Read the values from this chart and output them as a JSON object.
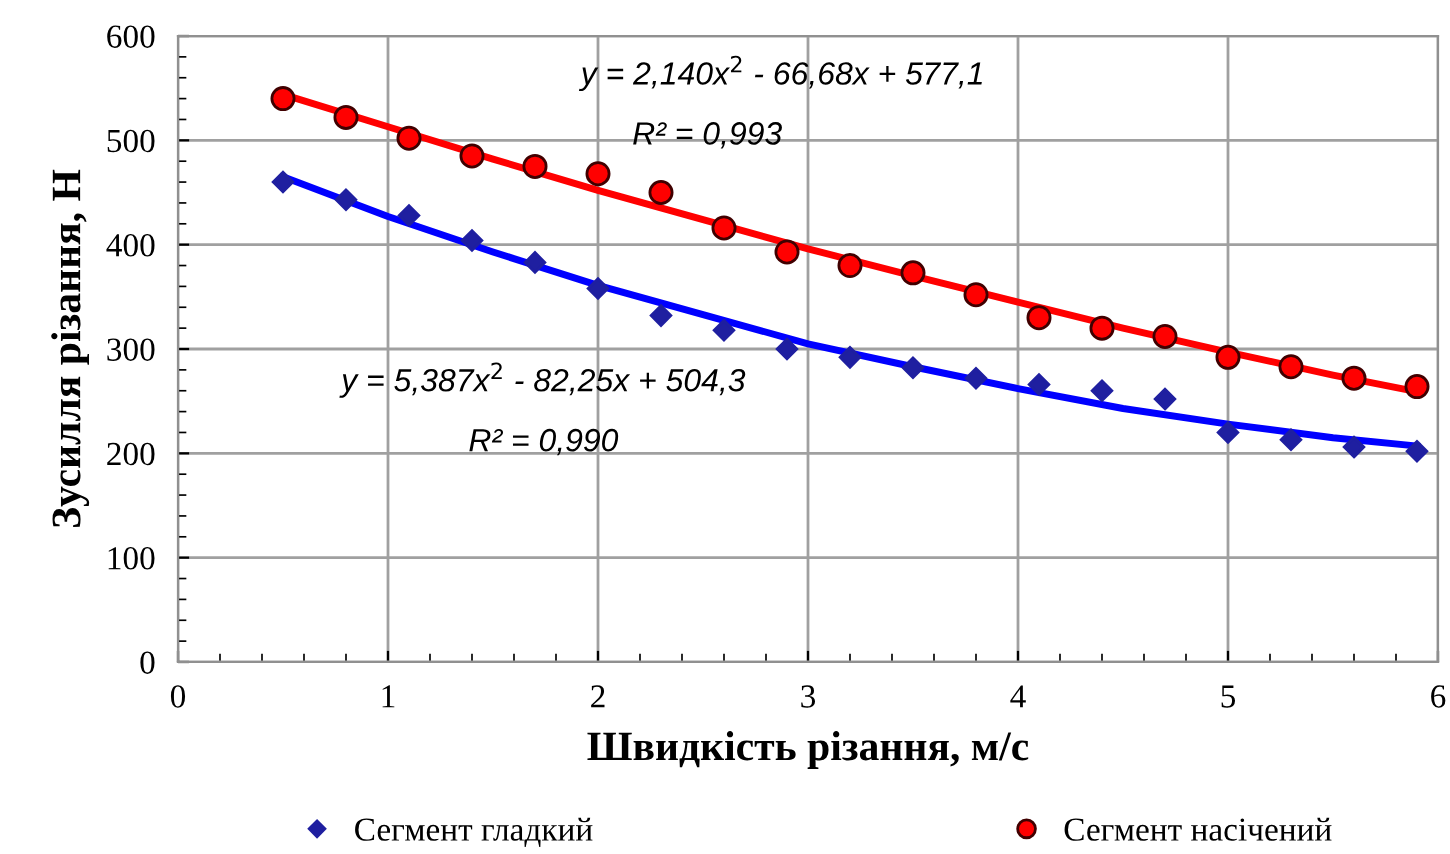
{
  "chart_data": {
    "type": "scatter",
    "xlabel": "Швидкість різання, м/с",
    "ylabel": "Зусилля різання, Н",
    "xlim": [
      0,
      6
    ],
    "xticks": [
      0,
      1,
      2,
      3,
      4,
      5,
      6
    ],
    "ylim": [
      0,
      600
    ],
    "yticks": [
      0,
      100,
      200,
      300,
      400,
      500,
      600
    ],
    "grid": true,
    "legend": "bottom",
    "series": [
      {
        "name": "Сегмент гладкий",
        "color": "#1f1fa0",
        "marker": "diamond",
        "x": [
          0.5,
          0.8,
          1.1,
          1.4,
          1.7,
          2.0,
          2.3,
          2.6,
          2.9,
          3.2,
          3.5,
          3.8,
          4.1,
          4.4,
          4.7,
          5.0,
          5.3,
          5.6,
          5.9
        ],
        "values": [
          460,
          443,
          428,
          404,
          383,
          358,
          332,
          318,
          300,
          292,
          282,
          272,
          266,
          260,
          252,
          220,
          213,
          206,
          202
        ]
      },
      {
        "name": "Сегмент насічений",
        "color": "#ff0000",
        "marker": "circle",
        "x": [
          0.5,
          0.8,
          1.1,
          1.4,
          1.7,
          2.0,
          2.3,
          2.6,
          2.9,
          3.2,
          3.5,
          3.8,
          4.1,
          4.4,
          4.7,
          5.0,
          5.3,
          5.6,
          5.9
        ],
        "values": [
          540,
          522,
          502,
          485,
          475,
          468,
          450,
          416,
          393,
          380,
          373,
          352,
          330,
          320,
          312,
          292,
          283,
          272,
          264
        ]
      },
      {
        "type": "line",
        "color": "#0000ff",
        "marker": "none",
        "x": [
          0.5,
          1,
          1.5,
          2,
          2.5,
          3,
          3.5,
          4,
          4.5,
          5,
          5.5,
          5.9
        ],
        "values": [
          465,
          427,
          393,
          361,
          333,
          305,
          283,
          262,
          243,
          228,
          215,
          207
        ]
      },
      {
        "type": "line",
        "color": "#ff0000",
        "marker": "none",
        "x": [
          0.5,
          1,
          1.5,
          2,
          2.5,
          3,
          3.5,
          4,
          4.5,
          5,
          5.5,
          5.9
        ],
        "values": [
          544,
          513,
          482,
          452,
          424,
          396,
          370,
          345,
          320,
          297,
          275,
          259
        ]
      }
    ],
    "annotations": [
      "y = 2,140x$^{2}$ - 66,68x + 577,1",
      "R² = 0,993",
      "y = 5,387x$^{2}$ - 82,25x + 504,3",
      "R² = 0,990"
    ]
  }
}
